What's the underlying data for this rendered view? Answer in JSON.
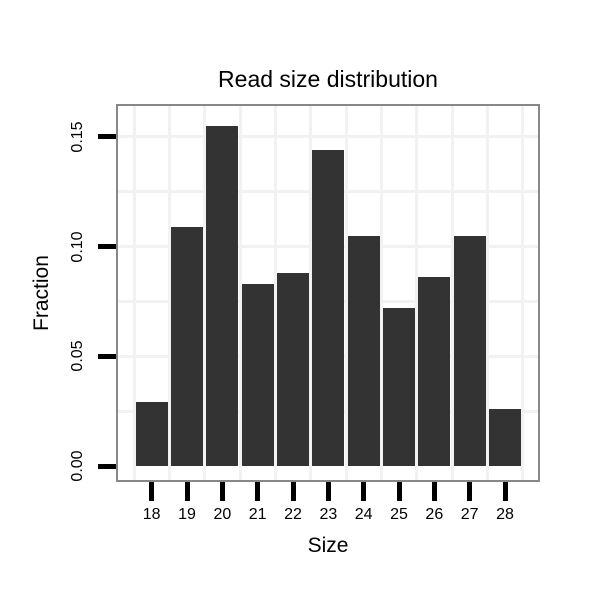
{
  "page": {
    "background": "#ffffff"
  },
  "chart_data": {
    "type": "bar",
    "title": "Read size distribution",
    "xlabel": "Size",
    "ylabel": "Fraction",
    "categories": [
      "18",
      "19",
      "20",
      "21",
      "22",
      "23",
      "24",
      "25",
      "26",
      "27",
      "28"
    ],
    "values": [
      0.029,
      0.109,
      0.155,
      0.083,
      0.088,
      0.144,
      0.105,
      0.072,
      0.086,
      0.105,
      0.026
    ],
    "y_ticks": [
      {
        "label": "0.00",
        "value": 0.0
      },
      {
        "label": "0.05",
        "value": 0.05
      },
      {
        "label": "0.10",
        "value": 0.1
      },
      {
        "label": "0.15",
        "value": 0.15
      }
    ],
    "ylim": [
      0,
      0.164
    ],
    "grid": {
      "horizontal_step": 0.025,
      "vertical_at_category_boundaries": true
    },
    "legend": "none",
    "colors": {
      "bar": "#333333",
      "frame": "#888888",
      "grid": "#f2f2f2",
      "tick": "#000000",
      "text": "#000000"
    }
  }
}
